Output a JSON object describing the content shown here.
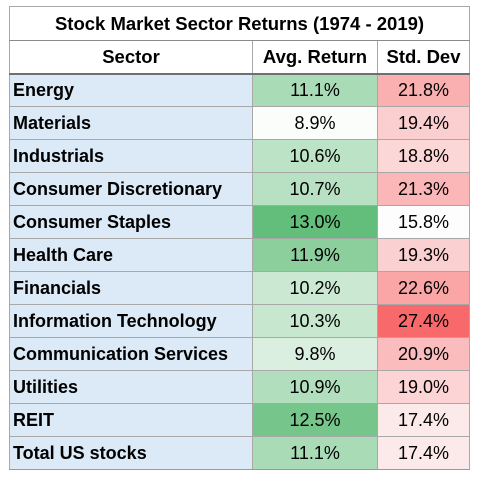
{
  "chart_data": {
    "type": "table",
    "title": "Stock Market Sector Returns (1974 - 2019)",
    "columns": [
      "Sector",
      "Avg. Return",
      "Std. Dev"
    ],
    "rows": [
      {
        "sector": "Energy",
        "avg_return": "11.1%",
        "std_dev": "21.8%",
        "avg_value": 11.1,
        "std_value": 21.8
      },
      {
        "sector": "Materials",
        "avg_return": "8.9%",
        "std_dev": "19.4%",
        "avg_value": 8.9,
        "std_value": 19.4
      },
      {
        "sector": "Industrials",
        "avg_return": "10.6%",
        "std_dev": "18.8%",
        "avg_value": 10.6,
        "std_value": 18.8
      },
      {
        "sector": "Consumer Discretionary",
        "avg_return": "10.7%",
        "std_dev": "21.3%",
        "avg_value": 10.7,
        "std_value": 21.3
      },
      {
        "sector": "Consumer Staples",
        "avg_return": "13.0%",
        "std_dev": "15.8%",
        "avg_value": 13.0,
        "std_value": 15.8
      },
      {
        "sector": "Health Care",
        "avg_return": "11.9%",
        "std_dev": "19.3%",
        "avg_value": 11.9,
        "std_value": 19.3
      },
      {
        "sector": "Financials",
        "avg_return": "10.2%",
        "std_dev": "22.6%",
        "avg_value": 10.2,
        "std_value": 22.6
      },
      {
        "sector": "Information Technology",
        "avg_return": "10.3%",
        "std_dev": "27.4%",
        "avg_value": 10.3,
        "std_value": 27.4
      },
      {
        "sector": "Communication Services",
        "avg_return": "9.8%",
        "std_dev": "20.9%",
        "avg_value": 9.8,
        "std_value": 20.9
      },
      {
        "sector": "Utilities",
        "avg_return": "10.9%",
        "std_dev": "19.0%",
        "avg_value": 10.9,
        "std_value": 19.0
      },
      {
        "sector": "REIT",
        "avg_return": "12.5%",
        "std_dev": "17.4%",
        "avg_value": 12.5,
        "std_value": 17.4
      },
      {
        "sector": "Total US stocks",
        "avg_return": "11.1%",
        "std_dev": "17.4%",
        "avg_value": 11.1,
        "std_value": 17.4
      }
    ],
    "colors": {
      "sector_bg": "#dce9f6",
      "avg_low": "#fbfdfb",
      "avg_high": "#63be7b",
      "std_low": "#fdfdfd",
      "std_high": "#f8696b"
    }
  }
}
